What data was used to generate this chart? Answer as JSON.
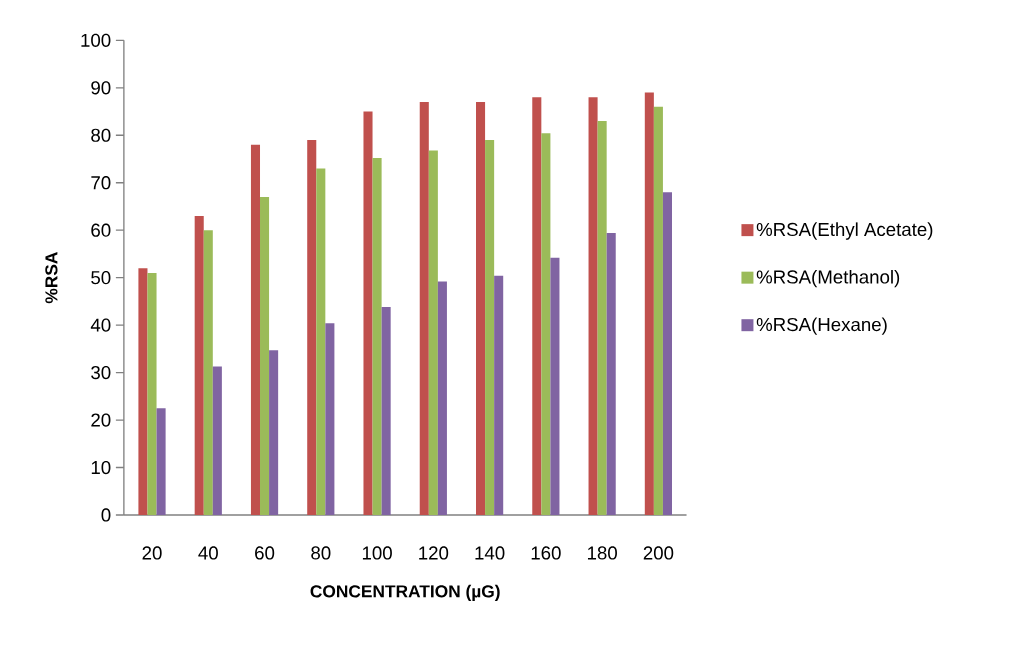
{
  "chart_data": {
    "type": "bar",
    "xlabel": "CONCENTRATION (µG)",
    "ylabel": "%RSA",
    "categories": [
      "20",
      "40",
      "60",
      "80",
      "100",
      "120",
      "140",
      "160",
      "180",
      "200"
    ],
    "series": [
      {
        "name": "%RSA(Ethyl Acetate)",
        "color": "#c0504d",
        "values": [
          52,
          63,
          78,
          79,
          85,
          87,
          87,
          88,
          88,
          89
        ]
      },
      {
        "name": "%RSA(Methanol)",
        "color": "#9bbb59",
        "values": [
          51,
          60,
          67,
          73,
          75.2,
          76.8,
          79,
          80.4,
          83,
          86
        ]
      },
      {
        "name": "%RSA(Hexane)",
        "color": "#8064a2",
        "values": [
          22.5,
          31.3,
          34.7,
          40.4,
          43.8,
          49.2,
          50.4,
          54.2,
          59.4,
          68
        ]
      }
    ],
    "ylim": [
      0,
      100
    ],
    "yticks": [
      0,
      10,
      20,
      30,
      40,
      50,
      60,
      70,
      80,
      90,
      100
    ],
    "legend": "right",
    "grid": false
  }
}
